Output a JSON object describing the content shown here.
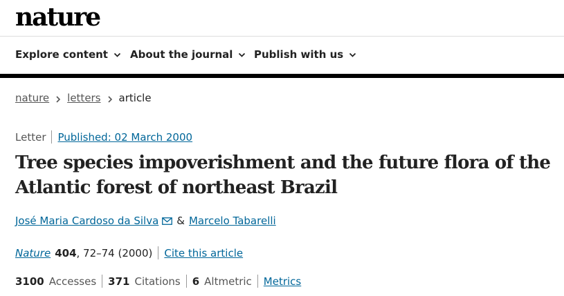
{
  "header": {
    "logo": "nature"
  },
  "nav": {
    "items": [
      {
        "label": "Explore content"
      },
      {
        "label": "About the journal"
      },
      {
        "label": "Publish with us"
      }
    ]
  },
  "breadcrumb": {
    "items": [
      "nature",
      "letters"
    ],
    "current": "article"
  },
  "article": {
    "type": "Letter",
    "published": "Published: 02 March 2000",
    "title": "Tree species impoverishment and the future flora of the Atlantic forest of northeast Brazil",
    "authors": [
      "José Maria Cardoso da Silva",
      "Marcelo Tabarelli"
    ],
    "author_separator": "&",
    "citation": {
      "journal": "Nature",
      "volume": "404",
      "pages_year": ", 72–74 (2000)",
      "cite_link": "Cite this article"
    },
    "metrics": {
      "accesses_value": "3100",
      "accesses_label": "Accesses",
      "citations_value": "371",
      "citations_label": "Citations",
      "altmetric_value": "6",
      "altmetric_label": "Altmetric",
      "metrics_link": "Metrics"
    }
  },
  "icons": {
    "nav_chevron": "chevron-down-icon",
    "breadcrumb_separator": "chevron-right-icon",
    "author_contact": "mail-icon"
  },
  "colors": {
    "link": "#006699",
    "text": "#222222",
    "muted": "#555555",
    "rule": "#000000"
  }
}
